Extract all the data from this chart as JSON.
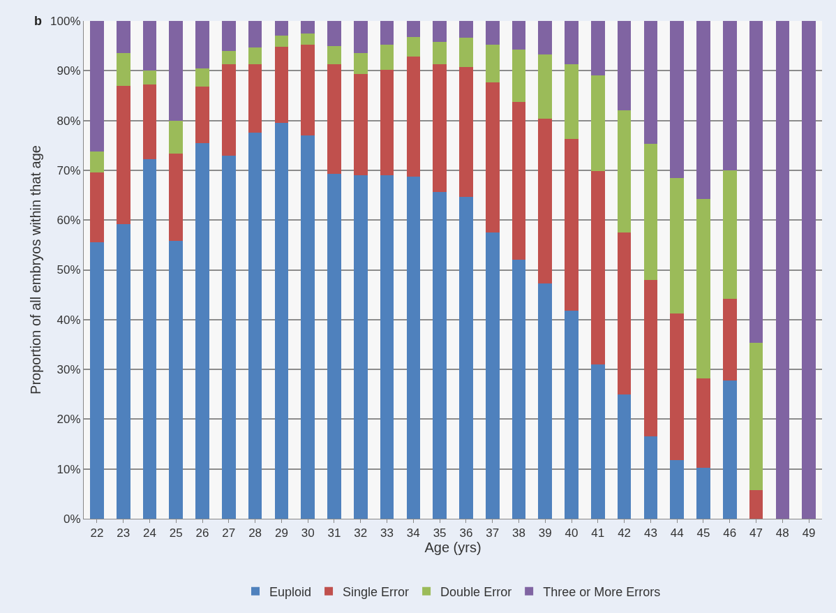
{
  "chart_data": {
    "type": "bar",
    "stacked": true,
    "categories": [
      "22",
      "23",
      "24",
      "25",
      "26",
      "27",
      "28",
      "29",
      "30",
      "31",
      "32",
      "33",
      "34",
      "35",
      "36",
      "37",
      "38",
      "39",
      "40",
      "41",
      "42",
      "43",
      "44",
      "45",
      "46",
      "47",
      "48",
      "49"
    ],
    "series": [
      {
        "name": "Euploid",
        "color": "#4f81bd",
        "values": [
          55.5,
          59.2,
          72.2,
          55.8,
          75.5,
          73,
          77.5,
          79.5,
          77,
          69.3,
          69,
          69,
          68.7,
          65.6,
          64.6,
          57.5,
          52,
          47.2,
          41.8,
          31,
          25,
          16.5,
          11.8,
          10.2,
          27.8,
          0,
          0,
          0
        ]
      },
      {
        "name": "Single Error",
        "color": "#c0504d",
        "values": [
          14,
          27.8,
          15,
          17.5,
          11.3,
          18.3,
          13.8,
          15.3,
          18.3,
          22,
          20.3,
          21.2,
          24.1,
          25.7,
          26.2,
          30.2,
          31.7,
          33.2,
          34.5,
          38.8,
          32.5,
          31.5,
          29.4,
          18,
          16.4,
          5.8,
          0,
          0
        ]
      },
      {
        "name": "Double Error",
        "color": "#9bbb59",
        "values": [
          4.3,
          6.6,
          2.8,
          6.7,
          3.7,
          2.7,
          3.4,
          2.2,
          2.2,
          3.7,
          4.3,
          5.1,
          4,
          4.5,
          5.8,
          7.6,
          10.6,
          12.9,
          15,
          19.2,
          24.5,
          27.3,
          27.3,
          36,
          25.8,
          29.5,
          0,
          0
        ]
      },
      {
        "name": "Three or More Errors",
        "color": "#8064a2",
        "values": [
          26.2,
          6.4,
          10,
          20,
          9.5,
          6,
          5.3,
          3,
          2.5,
          5,
          6.4,
          4.7,
          3.2,
          4.2,
          3.4,
          4.7,
          5.7,
          6.7,
          8.7,
          11,
          18,
          24.7,
          31.5,
          35.8,
          30,
          64.7,
          100,
          100
        ]
      }
    ],
    "xlabel": "Age (yrs)",
    "ylabel": "Proportion of all embryos within that age",
    "annotations": [
      "b"
    ],
    "ylim": [
      0,
      100
    ],
    "yticks": [
      {
        "value": 0,
        "label": "0%"
      },
      {
        "value": 10,
        "label": "10%"
      },
      {
        "value": 20,
        "label": "20%"
      },
      {
        "value": 30,
        "label": "30%"
      },
      {
        "value": 40,
        "label": "40%"
      },
      {
        "value": 50,
        "label": "50%"
      },
      {
        "value": 60,
        "label": "60%"
      },
      {
        "value": 70,
        "label": "70%"
      },
      {
        "value": 80,
        "label": "80%"
      },
      {
        "value": 90,
        "label": "90%"
      },
      {
        "value": 100,
        "label": "100%"
      }
    ],
    "grid": "y",
    "legend": "bottom"
  }
}
